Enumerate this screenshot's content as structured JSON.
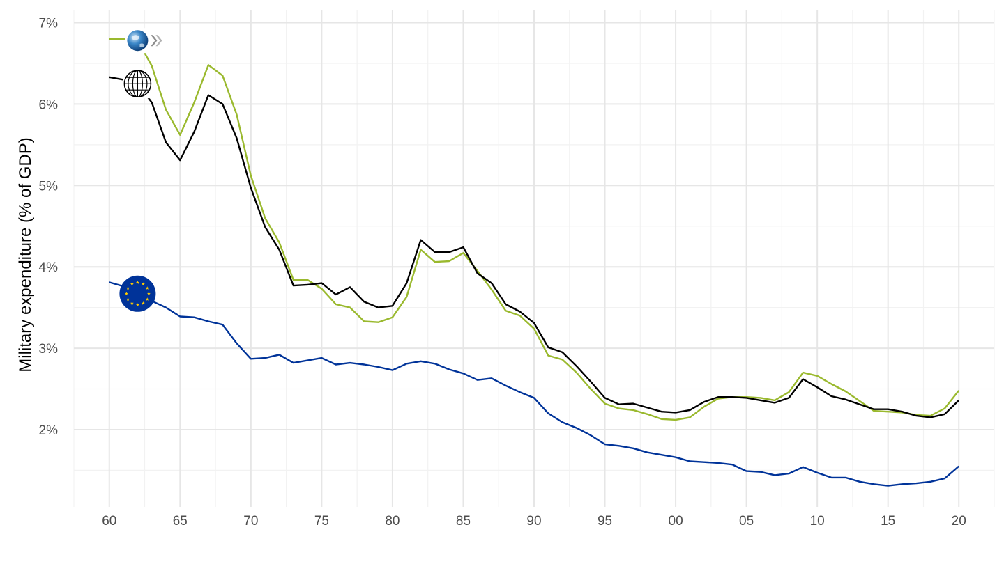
{
  "chart_data": {
    "type": "line",
    "title": "",
    "xlabel": "",
    "ylabel": "Military expenditure (% of GDP)",
    "x": [
      1960,
      1961,
      1962,
      1963,
      1964,
      1965,
      1966,
      1967,
      1968,
      1969,
      1970,
      1971,
      1972,
      1973,
      1974,
      1975,
      1976,
      1977,
      1978,
      1979,
      1980,
      1981,
      1982,
      1983,
      1984,
      1985,
      1986,
      1987,
      1988,
      1989,
      1990,
      1991,
      1992,
      1993,
      1994,
      1995,
      1996,
      1997,
      1998,
      1999,
      2000,
      2001,
      2002,
      2003,
      2004,
      2005,
      2006,
      2007,
      2008,
      2009,
      2010,
      2011,
      2012,
      2013,
      2014,
      2015,
      2016,
      2017,
      2018,
      2019,
      2020
    ],
    "xlim": [
      1957.5,
      2022.5
    ],
    "ylim": [
      1.05,
      7.15
    ],
    "x_ticks": [
      1960,
      1965,
      1970,
      1975,
      1980,
      1985,
      1990,
      1995,
      2000,
      2005,
      2010,
      2015,
      2020
    ],
    "x_tick_labels": [
      "60",
      "65",
      "70",
      "75",
      "80",
      "85",
      "90",
      "95",
      "00",
      "05",
      "10",
      "15",
      "20"
    ],
    "y_ticks": [
      2,
      3,
      4,
      5,
      6,
      7
    ],
    "y_tick_labels": [
      "2%",
      "3%",
      "4%",
      "5%",
      "6%",
      "7%"
    ],
    "grid": true,
    "legend": "none",
    "series": [
      {
        "icon": "oecd-globe-icon",
        "color": "#9ab92e",
        "values": [
          6.8,
          6.8,
          6.78,
          6.47,
          5.93,
          5.62,
          6.02,
          6.48,
          6.35,
          5.87,
          5.12,
          4.6,
          4.3,
          3.84,
          3.84,
          3.73,
          3.54,
          3.5,
          3.33,
          3.32,
          3.38,
          3.63,
          4.21,
          4.06,
          4.07,
          4.17,
          3.95,
          3.72,
          3.46,
          3.4,
          3.24,
          2.91,
          2.86,
          2.7,
          2.5,
          2.32,
          2.26,
          2.24,
          2.19,
          2.13,
          2.12,
          2.15,
          2.28,
          2.38,
          2.4,
          2.4,
          2.39,
          2.36,
          2.46,
          2.7,
          2.66,
          2.56,
          2.47,
          2.35,
          2.23,
          2.22,
          2.21,
          2.18,
          2.17,
          2.26,
          2.48
        ]
      },
      {
        "icon": "world-globe-icon",
        "color": "#000000",
        "values": [
          6.33,
          6.3,
          6.25,
          6.02,
          5.53,
          5.31,
          5.66,
          6.11,
          6.0,
          5.58,
          4.97,
          4.49,
          4.21,
          3.77,
          3.78,
          3.8,
          3.66,
          3.75,
          3.57,
          3.5,
          3.52,
          3.8,
          4.33,
          4.18,
          4.18,
          4.24,
          3.92,
          3.8,
          3.54,
          3.45,
          3.31,
          3.01,
          2.95,
          2.78,
          2.59,
          2.39,
          2.31,
          2.32,
          2.27,
          2.22,
          2.21,
          2.24,
          2.34,
          2.4,
          2.4,
          2.39,
          2.36,
          2.33,
          2.39,
          2.62,
          2.52,
          2.41,
          2.37,
          2.31,
          2.25,
          2.25,
          2.22,
          2.17,
          2.15,
          2.19,
          2.36
        ]
      },
      {
        "icon": "eu-flag-icon",
        "color": "#003399",
        "values": [
          3.81,
          3.76,
          3.67,
          3.58,
          3.5,
          3.39,
          3.38,
          3.33,
          3.29,
          3.06,
          2.87,
          2.88,
          2.92,
          2.82,
          2.85,
          2.88,
          2.8,
          2.82,
          2.8,
          2.77,
          2.73,
          2.81,
          2.84,
          2.81,
          2.74,
          2.69,
          2.61,
          2.63,
          2.54,
          2.46,
          2.39,
          2.2,
          2.09,
          2.02,
          1.93,
          1.82,
          1.8,
          1.77,
          1.72,
          1.69,
          1.66,
          1.61,
          1.6,
          1.59,
          1.57,
          1.49,
          1.48,
          1.44,
          1.46,
          1.54,
          1.47,
          1.41,
          1.41,
          1.36,
          1.33,
          1.31,
          1.33,
          1.34,
          1.36,
          1.4,
          1.55
        ]
      }
    ]
  }
}
